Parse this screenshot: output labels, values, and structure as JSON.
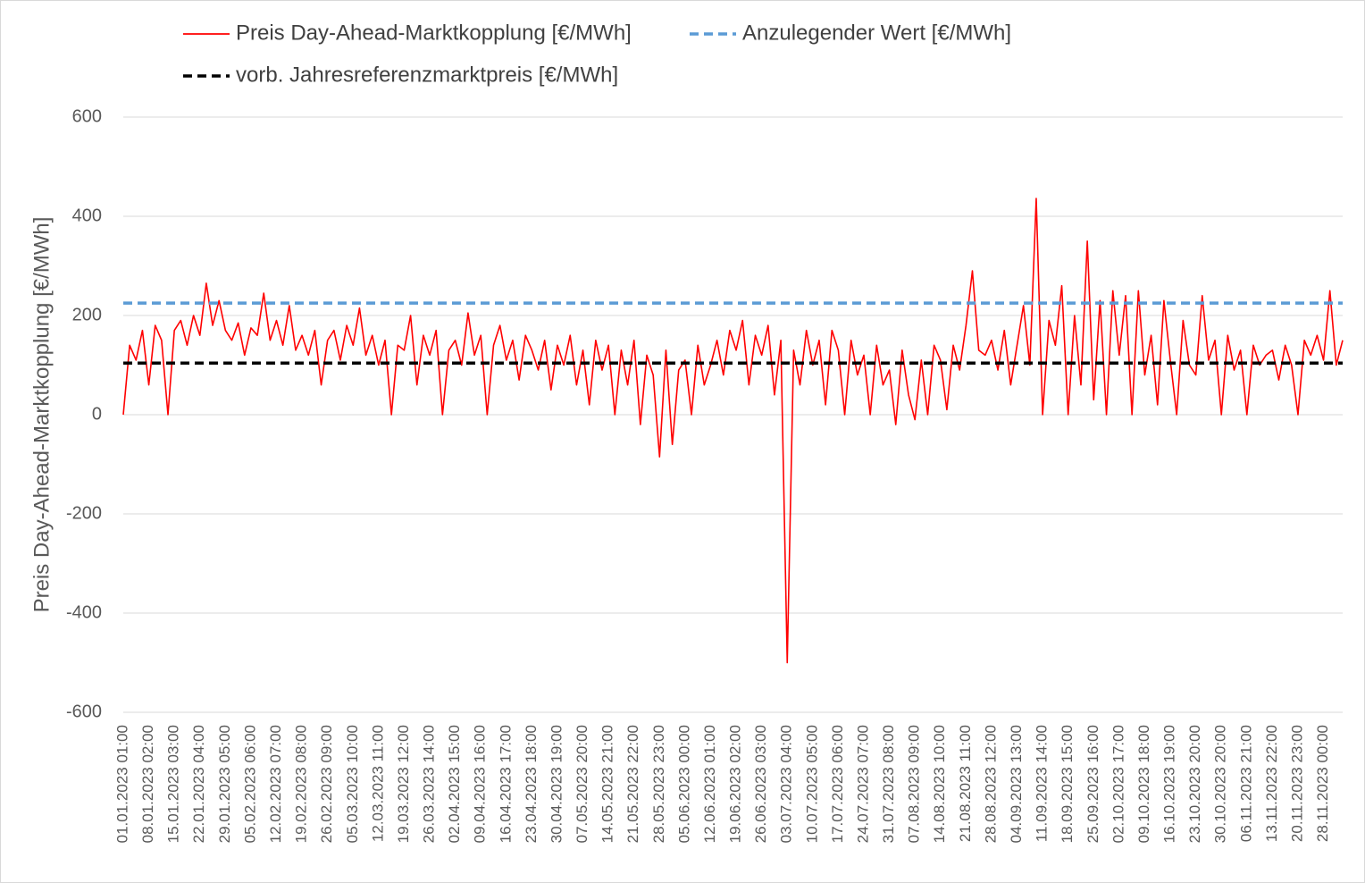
{
  "chart_data": {
    "type": "line",
    "ylabel": "Preis Day-Ahead-Marktkopplung [€/MWh]",
    "ylim": [
      -600,
      600
    ],
    "yticks": [
      -600,
      -400,
      -200,
      0,
      200,
      400,
      600
    ],
    "grid": true,
    "categories": [
      "01.01.2023 01:00",
      null,
      null,
      null,
      "08.01.2023 02:00",
      null,
      null,
      null,
      "15.01.2023 03:00",
      null,
      null,
      null,
      "22.01.2023 04:00",
      null,
      null,
      null,
      "29.01.2023 05:00",
      null,
      null,
      null,
      "05.02.2023 06:00",
      null,
      null,
      null,
      "12.02.2023 07:00",
      null,
      null,
      null,
      "19.02.2023 08:00",
      null,
      null,
      null,
      "26.02.2023 09:00",
      null,
      null,
      null,
      "05.03.2023 10:00",
      null,
      null,
      null,
      "12.03.2023 11:00",
      null,
      null,
      null,
      "19.03.2023 12:00",
      null,
      null,
      null,
      "26.03.2023 14:00",
      null,
      null,
      null,
      "02.04.2023 15:00",
      null,
      null,
      null,
      "09.04.2023 16:00",
      null,
      null,
      null,
      "16.04.2023 17:00",
      null,
      null,
      null,
      "23.04.2023 18:00",
      null,
      null,
      null,
      "30.04.2023 19:00",
      null,
      null,
      null,
      "07.05.2023 20:00",
      null,
      null,
      null,
      "14.05.2023 21:00",
      null,
      null,
      null,
      "21.05.2023 22:00",
      null,
      null,
      null,
      "28.05.2023 23:00",
      null,
      null,
      null,
      "05.06.2023 00:00",
      null,
      null,
      null,
      "12.06.2023 01:00",
      null,
      null,
      null,
      "19.06.2023 02:00",
      null,
      null,
      null,
      "26.06.2023 03:00",
      null,
      null,
      null,
      "03.07.2023 04:00",
      null,
      null,
      null,
      "10.07.2023 05:00",
      null,
      null,
      null,
      "17.07.2023 06:00",
      null,
      null,
      null,
      "24.07.2023 07:00",
      null,
      null,
      null,
      "31.07.2023 08:00",
      null,
      null,
      null,
      "07.08.2023 09:00",
      null,
      null,
      null,
      "14.08.2023 10:00",
      null,
      null,
      null,
      "21.08.2023 11:00",
      null,
      null,
      null,
      "28.08.2023 12:00",
      null,
      null,
      null,
      "04.09.2023 13:00",
      null,
      null,
      null,
      "11.09.2023 14:00",
      null,
      null,
      null,
      "18.09.2023 15:00",
      null,
      null,
      null,
      "25.09.2023 16:00",
      null,
      null,
      null,
      "02.10.2023 17:00",
      null,
      null,
      null,
      "09.10.2023 18:00",
      null,
      null,
      null,
      "16.10.2023 19:00",
      null,
      null,
      null,
      "23.10.2023 20:00",
      null,
      null,
      null,
      "30.10.2023 20:00",
      null,
      null,
      null,
      "06.11.2023 21:00",
      null,
      null,
      null,
      "13.11.2023 22:00",
      null,
      null,
      null,
      "20.11.2023 23:00",
      null,
      null,
      null,
      "28.11.2023 00:00",
      null,
      null,
      null
    ],
    "series": [
      {
        "name": "Preis Day-Ahead-Marktkopplung [€/MWh]",
        "color": "#ff0000",
        "values": [
          0,
          140,
          110,
          170,
          60,
          180,
          150,
          0,
          170,
          190,
          140,
          200,
          160,
          265,
          180,
          230,
          170,
          150,
          185,
          120,
          175,
          160,
          245,
          150,
          190,
          140,
          220,
          130,
          160,
          120,
          170,
          60,
          150,
          170,
          110,
          180,
          140,
          215,
          120,
          160,
          100,
          150,
          0,
          140,
          130,
          200,
          60,
          160,
          120,
          170,
          0,
          130,
          150,
          100,
          205,
          120,
          160,
          0,
          140,
          180,
          110,
          150,
          70,
          160,
          130,
          90,
          150,
          50,
          140,
          100,
          160,
          60,
          130,
          20,
          150,
          90,
          140,
          0,
          130,
          60,
          150,
          -20,
          120,
          80,
          -85,
          130,
          -60,
          90,
          110,
          0,
          140,
          60,
          100,
          150,
          80,
          170,
          130,
          190,
          60,
          160,
          120,
          180,
          40,
          150,
          -500,
          130,
          60,
          170,
          100,
          150,
          20,
          170,
          130,
          0,
          150,
          80,
          120,
          0,
          140,
          60,
          90,
          -20,
          130,
          40,
          -10,
          110,
          0,
          140,
          110,
          10,
          140,
          90,
          180,
          290,
          130,
          120,
          150,
          90,
          170,
          60,
          140,
          220,
          100,
          436,
          0,
          190,
          140,
          260,
          0,
          200,
          60,
          350,
          30,
          230,
          0,
          250,
          120,
          240,
          0,
          250,
          80,
          160,
          20,
          230,
          110,
          0,
          190,
          100,
          80,
          240,
          110,
          150,
          0,
          160,
          90,
          130,
          0,
          140,
          100,
          120,
          130,
          70,
          140,
          100,
          0,
          150,
          120,
          160,
          110,
          250,
          100,
          150
        ]
      }
    ],
    "reference_lines": [
      {
        "name": "Anzulegender Wert [€/MWh]",
        "color": "#5b9bd5",
        "value": 225
      },
      {
        "name": "vorb. Jahresreferenzmarktpreis [€/MWh]",
        "color": "#000000",
        "value": 104
      }
    ]
  }
}
